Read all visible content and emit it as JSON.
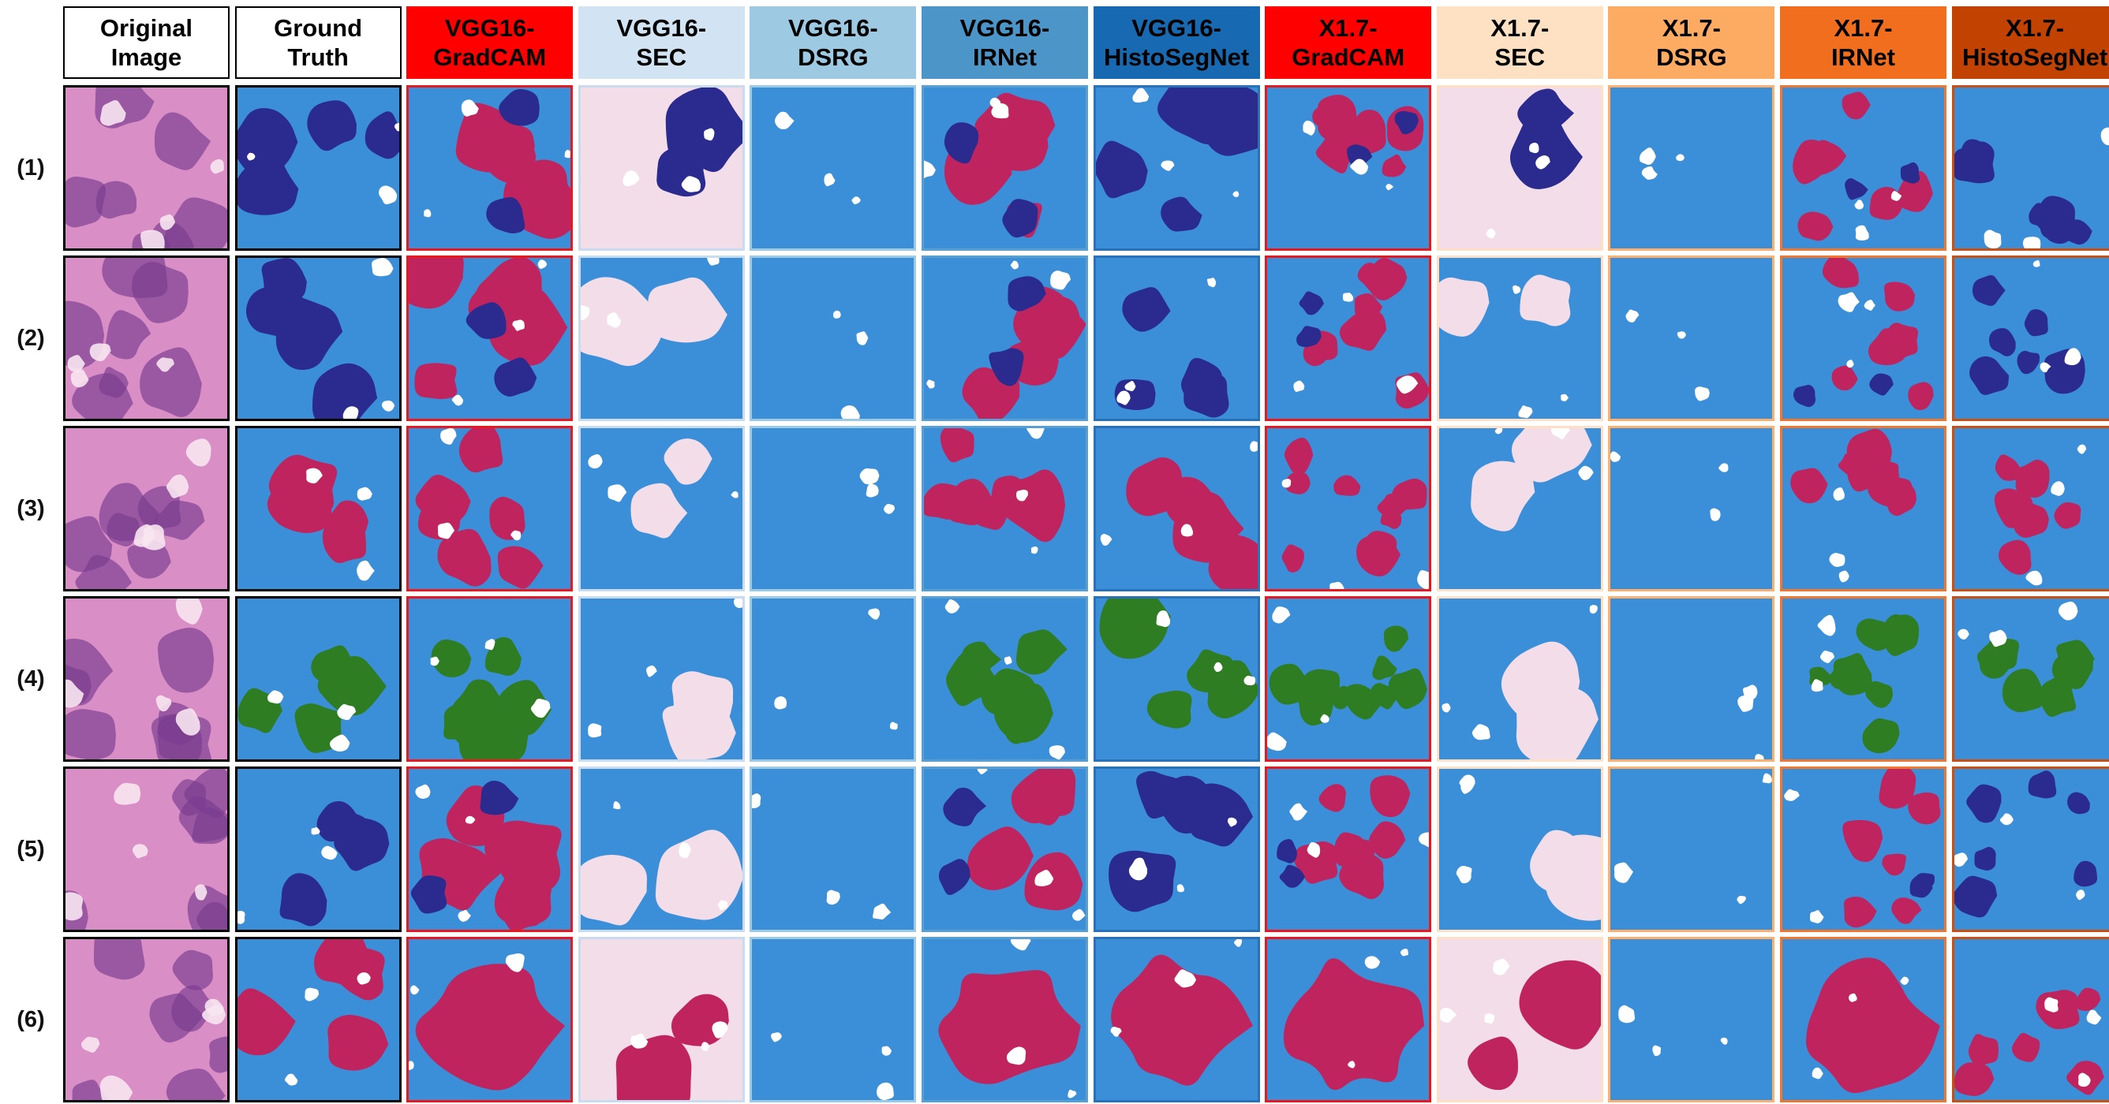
{
  "figure": {
    "columns": [
      {
        "label": "Original\nImage",
        "bg": "#ffffff",
        "fg": "#000000",
        "border": "#000000",
        "kind": "he"
      },
      {
        "label": "Ground\nTruth",
        "bg": "#ffffff",
        "fg": "#000000",
        "border": "#000000",
        "kind": "gt"
      },
      {
        "label": "VGG16-\nGradCAM",
        "bg": "#ff0000",
        "fg": "#000000",
        "border": "#e8191e",
        "kind": "gradcam"
      },
      {
        "label": "VGG16-\nSEC",
        "bg": "#d2e3f3",
        "fg": "#000000",
        "border": "#c9dcef",
        "kind": "sec"
      },
      {
        "label": "VGG16-\nDSRG",
        "bg": "#9dc9e2",
        "fg": "#000000",
        "border": "#9dc9e2",
        "kind": "dsrg"
      },
      {
        "label": "VGG16-\nIRNet",
        "bg": "#4c95c9",
        "fg": "#000000",
        "border": "#5a9fcf",
        "kind": "irnet"
      },
      {
        "label": "VGG16-\nHistoSegNet",
        "bg": "#1769b1",
        "fg": "#000000",
        "border": "#2a72b5",
        "kind": "hsn"
      },
      {
        "label": "X1.7-\nGradCAM",
        "bg": "#ff0000",
        "fg": "#000000",
        "border": "#e8191e",
        "kind": "gradcam"
      },
      {
        "label": "X1.7-\nSEC",
        "bg": "#fee0c2",
        "fg": "#000000",
        "border": "#fde0c5",
        "kind": "sec"
      },
      {
        "label": "X1.7-\nDSRG",
        "bg": "#fdab63",
        "fg": "#000000",
        "border": "#fdb06e",
        "kind": "dsrg"
      },
      {
        "label": "X1.7-\nIRNet",
        "bg": "#f16e1f",
        "fg": "#000000",
        "border": "#f0782e",
        "kind": "irnet"
      },
      {
        "label": "X1.7-\nHistoSegNet",
        "bg": "#c24202",
        "fg": "#000000",
        "border": "#c75012",
        "kind": "hsn"
      }
    ],
    "rows": [
      {
        "label": "(1)"
      },
      {
        "label": "(2)"
      },
      {
        "label": "(3)"
      },
      {
        "label": "(4)"
      },
      {
        "label": "(5)"
      },
      {
        "label": "(6)"
      }
    ],
    "colors": {
      "background_blue": "#3b8fd9",
      "navy": "#2b2a8f",
      "crimson": "#c0245e",
      "green": "#2f7d22",
      "white": "#ffffff",
      "pale_pink": "#f2dde8",
      "he_pink": "#d98ec5",
      "he_purple": "#7a3c8f"
    }
  }
}
